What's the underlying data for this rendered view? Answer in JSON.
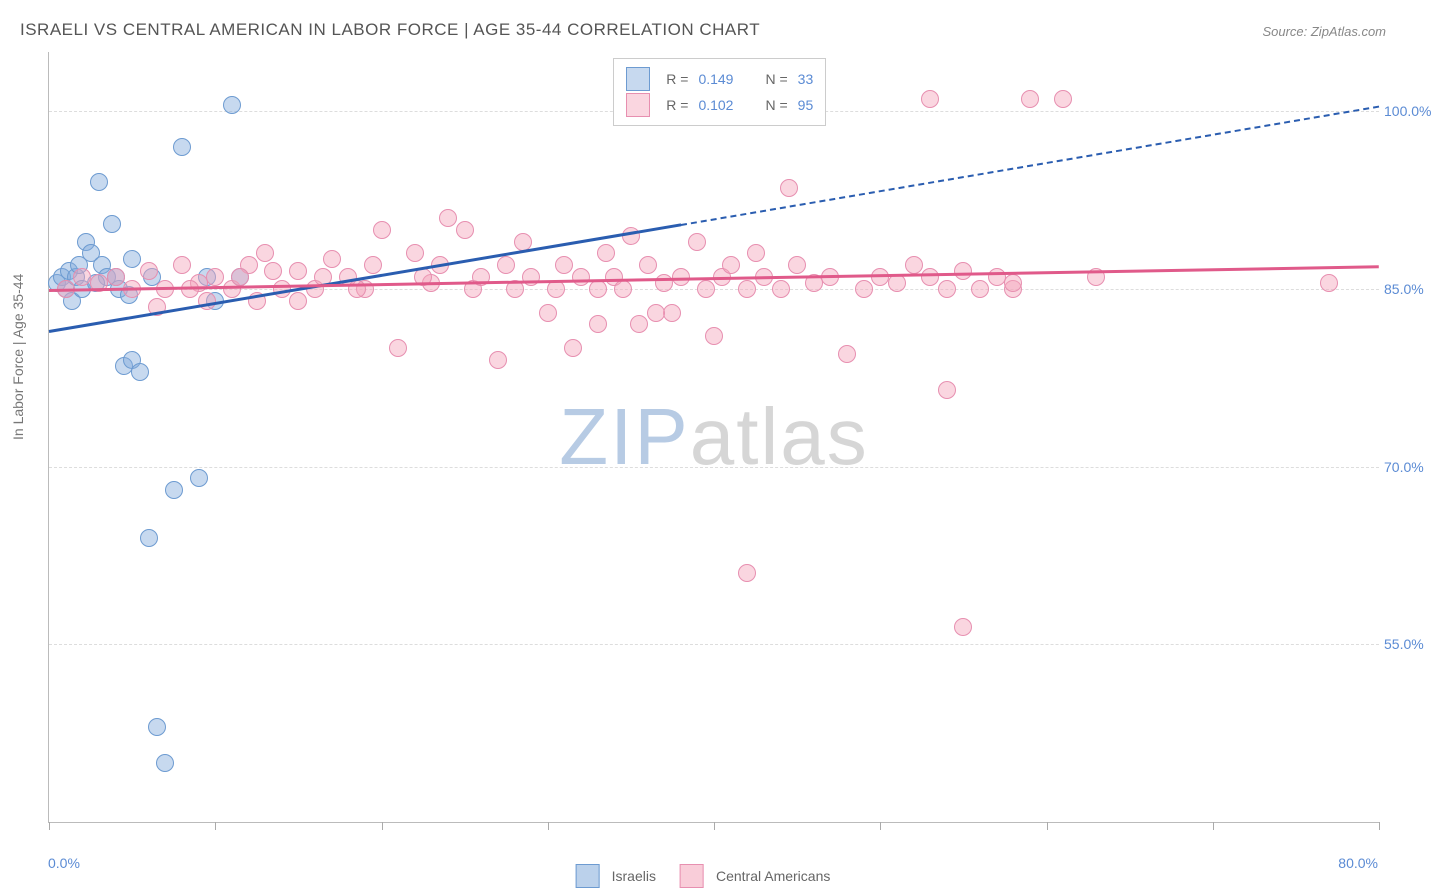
{
  "title": "ISRAELI VS CENTRAL AMERICAN IN LABOR FORCE | AGE 35-44 CORRELATION CHART",
  "source": "Source: ZipAtlas.com",
  "y_axis_title": "In Labor Force | Age 35-44",
  "watermark": {
    "pre": "ZIP",
    "post": "atlas",
    "pre_color": "#b7cbe4",
    "post_color": "#d6d6d6"
  },
  "chart": {
    "type": "scatter",
    "x_range": [
      0,
      80
    ],
    "x_label_min": "0.0%",
    "x_label_max": "80.0%",
    "y_range": [
      40,
      105
    ],
    "y_gridlines": [
      {
        "v": 55,
        "label": "55.0%"
      },
      {
        "v": 70,
        "label": "70.0%"
      },
      {
        "v": 85,
        "label": "85.0%"
      },
      {
        "v": 100,
        "label": "100.0%"
      }
    ],
    "x_ticks": [
      0,
      10,
      20,
      30,
      40,
      50,
      60,
      70,
      80
    ],
    "point_radius": 8,
    "background": "#ffffff",
    "grid_color": "#dddddd",
    "axis_color": "#bbbbbb"
  },
  "series": [
    {
      "name": "Israelis",
      "fill": "rgba(131,171,219,0.45)",
      "stroke": "#6d9bd1",
      "line_color": "#2a5db0",
      "R": "0.149",
      "N": "33",
      "trend": {
        "x1": 0,
        "y1": 81.5,
        "x2": 38,
        "y2": 90.5,
        "extend_x2": 80,
        "extend_y2": 100.5
      },
      "points": [
        [
          0.5,
          85.5
        ],
        [
          0.8,
          86
        ],
        [
          1,
          85
        ],
        [
          1.2,
          86.5
        ],
        [
          1.4,
          84
        ],
        [
          1.6,
          86
        ],
        [
          1.8,
          87
        ],
        [
          2,
          85
        ],
        [
          2.2,
          89
        ],
        [
          2.5,
          88
        ],
        [
          3,
          94
        ],
        [
          3.2,
          87
        ],
        [
          3.5,
          86
        ],
        [
          4,
          86
        ],
        [
          4.5,
          78.5
        ],
        [
          5,
          79
        ],
        [
          5.5,
          78
        ],
        [
          6,
          64
        ],
        [
          6.5,
          48
        ],
        [
          7,
          45
        ],
        [
          7.5,
          68
        ],
        [
          8,
          97
        ],
        [
          9,
          69
        ],
        [
          10,
          84
        ],
        [
          11,
          100.5
        ],
        [
          11.5,
          86
        ],
        [
          5,
          87.5
        ],
        [
          3.8,
          90.5
        ],
        [
          4.2,
          85
        ],
        [
          2.8,
          85.5
        ],
        [
          6.2,
          86
        ],
        [
          4.8,
          84.5
        ],
        [
          9.5,
          86
        ]
      ]
    },
    {
      "name": "Central Americans",
      "fill": "rgba(244,164,186,0.45)",
      "stroke": "#e78fb0",
      "line_color": "#e05a8a",
      "R": "0.102",
      "N": "95",
      "trend": {
        "x1": 0,
        "y1": 85,
        "x2": 80,
        "y2": 87
      },
      "points": [
        [
          1,
          85
        ],
        [
          2,
          86
        ],
        [
          3,
          85.5
        ],
        [
          4,
          86
        ],
        [
          5,
          85
        ],
        [
          6,
          86.5
        ],
        [
          7,
          85
        ],
        [
          8,
          87
        ],
        [
          9,
          85.5
        ],
        [
          10,
          86
        ],
        [
          11,
          85
        ],
        [
          12,
          87
        ],
        [
          13,
          88
        ],
        [
          14,
          85
        ],
        [
          15,
          86.5
        ],
        [
          16,
          85
        ],
        [
          17,
          87.5
        ],
        [
          18,
          86
        ],
        [
          19,
          85
        ],
        [
          20,
          90
        ],
        [
          21,
          80
        ],
        [
          22,
          88
        ],
        [
          23,
          85.5
        ],
        [
          23.5,
          87
        ],
        [
          24,
          91
        ],
        [
          25,
          90
        ],
        [
          25.5,
          85
        ],
        [
          26,
          86
        ],
        [
          27,
          79
        ],
        [
          27.5,
          87
        ],
        [
          28,
          85
        ],
        [
          28.5,
          89
        ],
        [
          29,
          86
        ],
        [
          30,
          83
        ],
        [
          30.5,
          85
        ],
        [
          31,
          87
        ],
        [
          31.5,
          80
        ],
        [
          32,
          86
        ],
        [
          33,
          85
        ],
        [
          33.5,
          88
        ],
        [
          34,
          86
        ],
        [
          34.5,
          85
        ],
        [
          35,
          89.5
        ],
        [
          35.5,
          82
        ],
        [
          36,
          87
        ],
        [
          37,
          85.5
        ],
        [
          37.5,
          83
        ],
        [
          38,
          86
        ],
        [
          39,
          89
        ],
        [
          39.5,
          85
        ],
        [
          40,
          81
        ],
        [
          40.5,
          86
        ],
        [
          41,
          87
        ],
        [
          42,
          85
        ],
        [
          42.5,
          88
        ],
        [
          43,
          86
        ],
        [
          44,
          85
        ],
        [
          44.5,
          93.5
        ],
        [
          45,
          87
        ],
        [
          46,
          85.5
        ],
        [
          47,
          86
        ],
        [
          48,
          79.5
        ],
        [
          49,
          85
        ],
        [
          50,
          86
        ],
        [
          51,
          85.5
        ],
        [
          52,
          87
        ],
        [
          53,
          86
        ],
        [
          54,
          85
        ],
        [
          55,
          86.5
        ],
        [
          56,
          85
        ],
        [
          57,
          86
        ],
        [
          58,
          85
        ],
        [
          42,
          61
        ],
        [
          53,
          101
        ],
        [
          54,
          76.5
        ],
        [
          55,
          56.5
        ],
        [
          58,
          85.5
        ],
        [
          59,
          101
        ],
        [
          61,
          101
        ],
        [
          63,
          86
        ],
        [
          77,
          85.5
        ],
        [
          15,
          84
        ],
        [
          16.5,
          86
        ],
        [
          18.5,
          85
        ],
        [
          19.5,
          87
        ],
        [
          12.5,
          84
        ],
        [
          13.5,
          86.5
        ],
        [
          33,
          82
        ],
        [
          36.5,
          83
        ],
        [
          8.5,
          85
        ],
        [
          9.5,
          84
        ],
        [
          11.5,
          86
        ],
        [
          6.5,
          83.5
        ],
        [
          22.5,
          86
        ]
      ]
    }
  ],
  "legend_top": {
    "label_R": "R =",
    "label_N": "N ="
  },
  "legend_bottom": [
    {
      "label": "Israelis",
      "fill": "rgba(131,171,219,0.55)",
      "stroke": "#6d9bd1"
    },
    {
      "label": "Central Americans",
      "fill": "rgba(244,164,186,0.55)",
      "stroke": "#e78fb0"
    }
  ]
}
